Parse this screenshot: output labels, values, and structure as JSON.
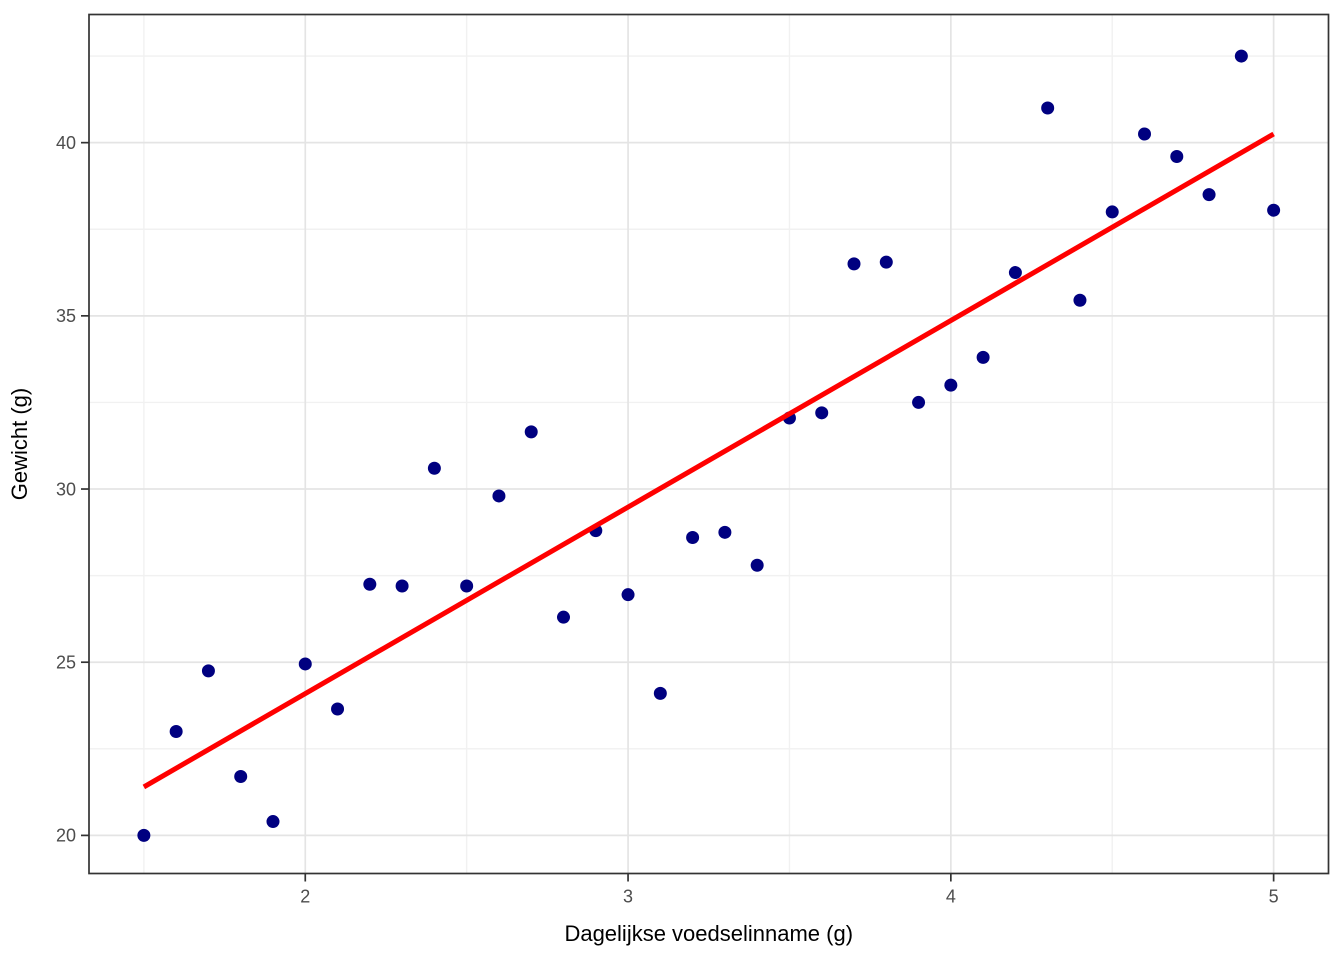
{
  "chart_data": {
    "type": "scatter",
    "title": "",
    "xlabel": "Dagelijkse voedselinname (g)",
    "ylabel": "Gewicht (g)",
    "xlim": [
      1.33,
      5.17
    ],
    "ylim": [
      18.9,
      43.7
    ],
    "x_major_ticks": [
      2,
      3,
      4,
      5
    ],
    "x_minor_gridlines": [
      1.5,
      2.5,
      3.5,
      4.5
    ],
    "y_major_ticks": [
      20,
      25,
      30,
      35,
      40
    ],
    "y_minor_gridlines": [
      22.5,
      27.5,
      32.5,
      37.5,
      42.5
    ],
    "grid": "major+minor",
    "legend_position": "none",
    "series": [
      {
        "name": "observations",
        "type": "scatter",
        "color": "#000080",
        "point_radius": 6.5,
        "points": [
          [
            1.5,
            20.0
          ],
          [
            1.6,
            23.0
          ],
          [
            1.7,
            24.75
          ],
          [
            1.8,
            21.7
          ],
          [
            1.9,
            20.4
          ],
          [
            2.0,
            24.95
          ],
          [
            2.1,
            23.65
          ],
          [
            2.2,
            27.25
          ],
          [
            2.3,
            27.2
          ],
          [
            2.4,
            30.6
          ],
          [
            2.5,
            27.2
          ],
          [
            2.6,
            29.8
          ],
          [
            2.7,
            31.65
          ],
          [
            2.8,
            26.3
          ],
          [
            2.9,
            28.8
          ],
          [
            3.0,
            26.95
          ],
          [
            3.1,
            24.1
          ],
          [
            3.2,
            28.6
          ],
          [
            3.3,
            28.75
          ],
          [
            3.4,
            27.8
          ],
          [
            3.5,
            32.05
          ],
          [
            3.6,
            32.2
          ],
          [
            3.7,
            36.5
          ],
          [
            3.8,
            36.55
          ],
          [
            3.9,
            32.5
          ],
          [
            4.0,
            33.0
          ],
          [
            4.1,
            33.8
          ],
          [
            4.2,
            36.25
          ],
          [
            4.3,
            41.0
          ],
          [
            4.4,
            35.45
          ],
          [
            4.5,
            38.0
          ],
          [
            4.6,
            40.25
          ],
          [
            4.7,
            39.6
          ],
          [
            4.8,
            38.5
          ],
          [
            4.9,
            42.5
          ],
          [
            5.0,
            38.05
          ]
        ]
      },
      {
        "name": "linear-fit",
        "type": "line",
        "color": "#ff0000",
        "line_width": 5,
        "points": [
          [
            1.5,
            21.4
          ],
          [
            5.0,
            40.25
          ]
        ]
      }
    ],
    "style_colors": {
      "panel_background": "#ffffff",
      "figure_background": "#ffffff",
      "grid_major": "#e4e4e4",
      "grid_minor": "#f1f1f1",
      "panel_border": "#333333",
      "tick_mark": "#333333",
      "tick_label": "#4d4d4d",
      "axis_title": "#000000"
    }
  }
}
